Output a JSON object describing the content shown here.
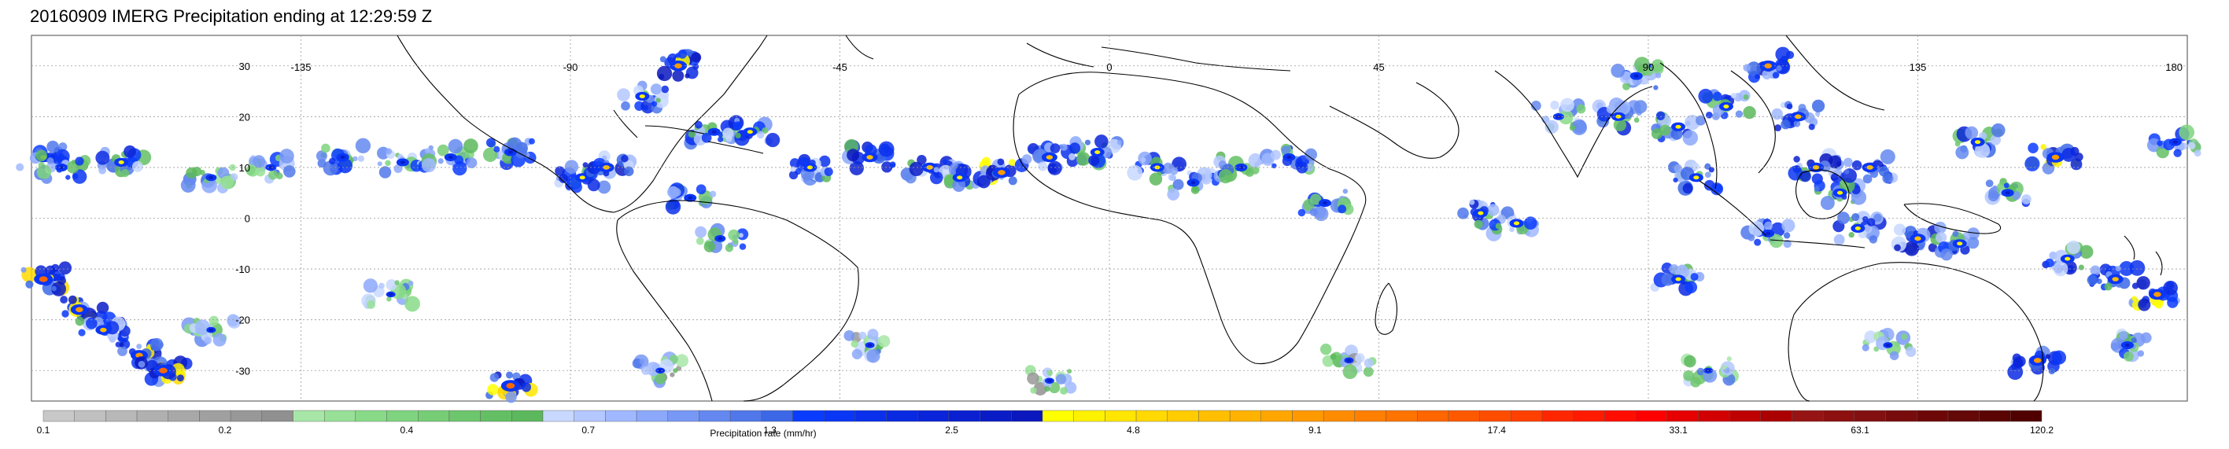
{
  "title": "20160909 IMERG Precipitation ending at 12:29:59 Z",
  "map": {
    "lon_range": [
      -180,
      180
    ],
    "lat_range": [
      -36,
      36
    ],
    "lon_ticks": [
      {
        "value": -135,
        "label": "-135"
      },
      {
        "value": -90,
        "label": "-90"
      },
      {
        "value": -45,
        "label": "-45"
      },
      {
        "value": 0,
        "label": "0"
      },
      {
        "value": 45,
        "label": "45"
      },
      {
        "value": 90,
        "label": "90"
      },
      {
        "value": 135,
        "label": "135"
      },
      {
        "value": 180,
        "label": "180"
      }
    ],
    "lat_ticks": [
      {
        "value": 30,
        "label": "30"
      },
      {
        "value": 20,
        "label": "20"
      },
      {
        "value": 10,
        "label": "10"
      },
      {
        "value": 0,
        "label": "0"
      },
      {
        "value": -10,
        "label": "-10"
      },
      {
        "value": -20,
        "label": "-20"
      },
      {
        "value": -30,
        "label": "-30"
      }
    ],
    "grid": true,
    "coastline_color": "#000000",
    "grid_color": "#9a9a9a"
  },
  "colorbar": {
    "title": "Precipitation rate (mm/hr)",
    "labels": [
      "0.1",
      "0.2",
      "0.4",
      "0.7",
      "1.3",
      "2.5",
      "4.8",
      "9.1",
      "17.4",
      "33.1",
      "63.1",
      "120.2"
    ],
    "colors": [
      "#c8c8c8",
      "#c0c0c0",
      "#b8b8b8",
      "#b0b0b0",
      "#a8a8a8",
      "#a0a0a0",
      "#989898",
      "#909090",
      "#a8e6a8",
      "#98e098",
      "#88da88",
      "#7fd47f",
      "#76cd76",
      "#6dc66d",
      "#64bf64",
      "#5cb85c",
      "#c8d8ff",
      "#b4c8ff",
      "#a0b8ff",
      "#8ca8fa",
      "#7898f5",
      "#6488f0",
      "#5078eb",
      "#3c68e6",
      "#0a3cff",
      "#0a36f5",
      "#0a30ec",
      "#0a2ae2",
      "#0a24d9",
      "#0a20d0",
      "#0a1cc6",
      "#0a18bd",
      "#ffff00",
      "#fff200",
      "#ffe600",
      "#ffd900",
      "#ffcc00",
      "#ffbf00",
      "#ffb200",
      "#ffa600",
      "#ff9900",
      "#ff8c00",
      "#ff7f00",
      "#ff7300",
      "#ff6600",
      "#ff5900",
      "#ff4d00",
      "#ff4000",
      "#ff2600",
      "#ff1a00",
      "#ff0d00",
      "#ff0000",
      "#e60000",
      "#d20000",
      "#be0000",
      "#aa0000",
      "#961414",
      "#8c1010",
      "#821010",
      "#780c0c",
      "#6e0808",
      "#640808",
      "#5a0404",
      "#500000"
    ]
  },
  "chart_data": {
    "type": "heatmap",
    "title": "20160909 IMERG Precipitation ending at 12:29:59 Z",
    "colorbar_label": "Precipitation rate (mm/hr)",
    "xlim": [
      -180,
      180
    ],
    "ylim": [
      -36,
      36
    ],
    "cells": [
      {
        "lon": -178,
        "lat": 12,
        "intensity": 0.7
      },
      {
        "lon": -175,
        "lat": 10,
        "intensity": 0.5
      },
      {
        "lon": -178,
        "lat": -12,
        "intensity": 0.9
      },
      {
        "lon": -172,
        "lat": -18,
        "intensity": 0.8
      },
      {
        "lon": -168,
        "lat": -22,
        "intensity": 0.7
      },
      {
        "lon": -162,
        "lat": -27,
        "intensity": 0.8
      },
      {
        "lon": -158,
        "lat": -30,
        "intensity": 0.9
      },
      {
        "lon": -165,
        "lat": 11,
        "intensity": 0.6
      },
      {
        "lon": -150,
        "lat": 8,
        "intensity": 0.4
      },
      {
        "lon": -140,
        "lat": 10,
        "intensity": 0.4
      },
      {
        "lon": -128,
        "lat": 12,
        "intensity": 0.5
      },
      {
        "lon": -118,
        "lat": 11,
        "intensity": 0.5
      },
      {
        "lon": -110,
        "lat": 12,
        "intensity": 0.5
      },
      {
        "lon": -100,
        "lat": 13,
        "intensity": 0.5
      },
      {
        "lon": -88,
        "lat": 8,
        "intensity": 0.6
      },
      {
        "lon": -84,
        "lat": 10,
        "intensity": 0.7
      },
      {
        "lon": -78,
        "lat": 24,
        "intensity": 0.6
      },
      {
        "lon": -72,
        "lat": 30,
        "intensity": 0.8
      },
      {
        "lon": -66,
        "lat": 17,
        "intensity": 0.5
      },
      {
        "lon": -60,
        "lat": 17,
        "intensity": 0.6
      },
      {
        "lon": -70,
        "lat": 4,
        "intensity": 0.5
      },
      {
        "lon": -65,
        "lat": -4,
        "intensity": 0.4
      },
      {
        "lon": -50,
        "lat": 10,
        "intensity": 0.6
      },
      {
        "lon": -40,
        "lat": 12,
        "intensity": 0.7
      },
      {
        "lon": -30,
        "lat": 10,
        "intensity": 0.7
      },
      {
        "lon": -25,
        "lat": 8,
        "intensity": 0.6
      },
      {
        "lon": -18,
        "lat": 9,
        "intensity": 0.8
      },
      {
        "lon": -10,
        "lat": 12,
        "intensity": 0.7
      },
      {
        "lon": -2,
        "lat": 13,
        "intensity": 0.6
      },
      {
        "lon": 8,
        "lat": 10,
        "intensity": 0.6
      },
      {
        "lon": 14,
        "lat": 7,
        "intensity": 0.5
      },
      {
        "lon": 22,
        "lat": 10,
        "intensity": 0.5
      },
      {
        "lon": 30,
        "lat": 12,
        "intensity": 0.5
      },
      {
        "lon": 36,
        "lat": 3,
        "intensity": 0.5
      },
      {
        "lon": 62,
        "lat": 1,
        "intensity": 0.6
      },
      {
        "lon": 68,
        "lat": -1,
        "intensity": 0.6
      },
      {
        "lon": 75,
        "lat": 20,
        "intensity": 0.4
      },
      {
        "lon": 85,
        "lat": 20,
        "intensity": 0.6
      },
      {
        "lon": 88,
        "lat": 28,
        "intensity": 0.5
      },
      {
        "lon": 95,
        "lat": 18,
        "intensity": 0.6
      },
      {
        "lon": 98,
        "lat": 8,
        "intensity": 0.6
      },
      {
        "lon": 95,
        "lat": -12,
        "intensity": 0.6
      },
      {
        "lon": 103,
        "lat": 22,
        "intensity": 0.6
      },
      {
        "lon": 110,
        "lat": 30,
        "intensity": 0.8
      },
      {
        "lon": 115,
        "lat": 20,
        "intensity": 0.7
      },
      {
        "lon": 118,
        "lat": 10,
        "intensity": 0.7
      },
      {
        "lon": 122,
        "lat": 5,
        "intensity": 0.6
      },
      {
        "lon": 127,
        "lat": 10,
        "intensity": 0.7
      },
      {
        "lon": 110,
        "lat": -3,
        "intensity": 0.5
      },
      {
        "lon": 125,
        "lat": -2,
        "intensity": 0.6
      },
      {
        "lon": 135,
        "lat": -4,
        "intensity": 0.7
      },
      {
        "lon": 142,
        "lat": -5,
        "intensity": 0.6
      },
      {
        "lon": 145,
        "lat": 15,
        "intensity": 0.6
      },
      {
        "lon": 150,
        "lat": 5,
        "intensity": 0.5
      },
      {
        "lon": 158,
        "lat": 12,
        "intensity": 0.8
      },
      {
        "lon": 160,
        "lat": -8,
        "intensity": 0.6
      },
      {
        "lon": 168,
        "lat": -12,
        "intensity": 0.7
      },
      {
        "lon": 175,
        "lat": -15,
        "intensity": 0.8
      },
      {
        "lon": 178,
        "lat": 15,
        "intensity": 0.5
      },
      {
        "lon": 155,
        "lat": -28,
        "intensity": 0.8
      },
      {
        "lon": 170,
        "lat": -25,
        "intensity": 0.5
      },
      {
        "lon": -100,
        "lat": -33,
        "intensity": 0.9
      },
      {
        "lon": -120,
        "lat": -15,
        "intensity": 0.3
      },
      {
        "lon": -150,
        "lat": -22,
        "intensity": 0.3
      },
      {
        "lon": -75,
        "lat": -30,
        "intensity": 0.3
      },
      {
        "lon": -40,
        "lat": -25,
        "intensity": 0.3
      },
      {
        "lon": -10,
        "lat": -32,
        "intensity": 0.3
      },
      {
        "lon": 40,
        "lat": -28,
        "intensity": 0.3
      },
      {
        "lon": 100,
        "lat": -30,
        "intensity": 0.3
      },
      {
        "lon": 130,
        "lat": -25,
        "intensity": 0.3
      }
    ]
  }
}
